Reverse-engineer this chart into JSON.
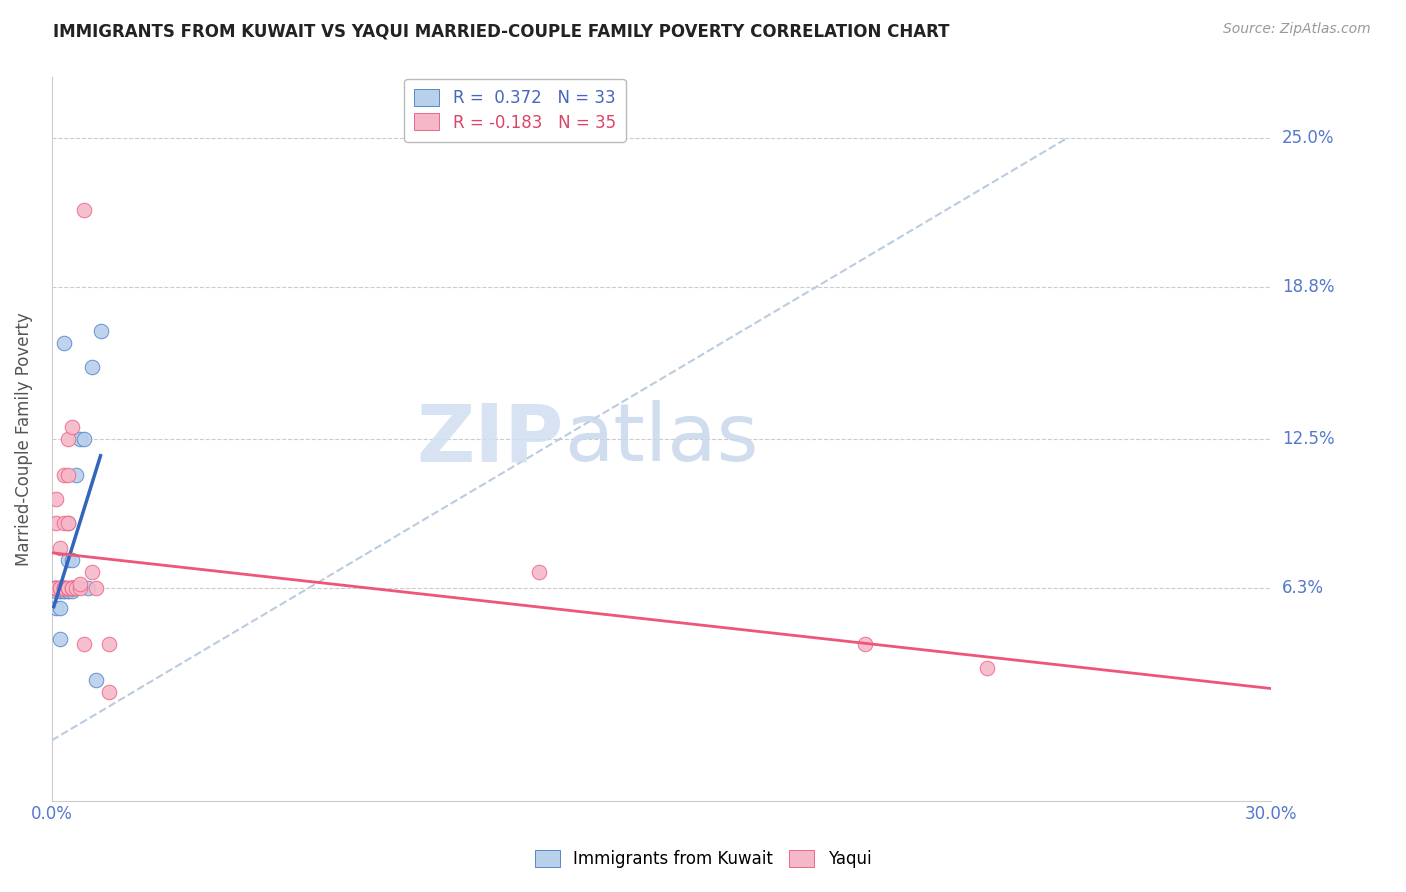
{
  "title": "IMMIGRANTS FROM KUWAIT VS YAQUI MARRIED-COUPLE FAMILY POVERTY CORRELATION CHART",
  "source": "Source: ZipAtlas.com",
  "ylabel": "Married-Couple Family Poverty",
  "ytick_labels": [
    "25.0%",
    "18.8%",
    "12.5%",
    "6.3%"
  ],
  "ytick_values": [
    0.25,
    0.188,
    0.125,
    0.063
  ],
  "xlim": [
    0.0,
    0.3
  ],
  "ylim": [
    -0.025,
    0.275
  ],
  "legend_r1": "R =  0.372   N = 33",
  "legend_r2": "R = -0.183   N = 35",
  "blue_fill": "#b8d0ea",
  "pink_fill": "#f5b8c8",
  "blue_edge": "#5588cc",
  "pink_edge": "#ee6688",
  "blue_line": "#3366bb",
  "pink_line": "#ee5577",
  "diagonal_color": "#bbcce0",
  "blue_scatter_x": [
    0.0005,
    0.001,
    0.001,
    0.001,
    0.0015,
    0.002,
    0.002,
    0.002,
    0.002,
    0.002,
    0.003,
    0.003,
    0.003,
    0.003,
    0.003,
    0.003,
    0.004,
    0.004,
    0.004,
    0.004,
    0.005,
    0.005,
    0.005,
    0.005,
    0.005,
    0.006,
    0.006,
    0.007,
    0.008,
    0.009,
    0.01,
    0.011,
    0.012
  ],
  "blue_scatter_y": [
    0.063,
    0.063,
    0.062,
    0.055,
    0.063,
    0.062,
    0.062,
    0.055,
    0.042,
    0.063,
    0.063,
    0.062,
    0.062,
    0.063,
    0.063,
    0.165,
    0.062,
    0.062,
    0.075,
    0.09,
    0.062,
    0.063,
    0.063,
    0.063,
    0.075,
    0.063,
    0.11,
    0.125,
    0.125,
    0.063,
    0.155,
    0.025,
    0.17
  ],
  "pink_scatter_x": [
    0.0005,
    0.001,
    0.001,
    0.001,
    0.001,
    0.002,
    0.002,
    0.002,
    0.003,
    0.003,
    0.003,
    0.003,
    0.003,
    0.004,
    0.004,
    0.004,
    0.004,
    0.004,
    0.004,
    0.005,
    0.005,
    0.005,
    0.005,
    0.006,
    0.007,
    0.007,
    0.008,
    0.008,
    0.01,
    0.011,
    0.014,
    0.014,
    0.12,
    0.2,
    0.23
  ],
  "pink_scatter_y": [
    0.063,
    0.063,
    0.09,
    0.1,
    0.063,
    0.063,
    0.063,
    0.08,
    0.063,
    0.063,
    0.11,
    0.09,
    0.063,
    0.063,
    0.063,
    0.063,
    0.09,
    0.11,
    0.125,
    0.063,
    0.063,
    0.063,
    0.13,
    0.063,
    0.063,
    0.065,
    0.22,
    0.04,
    0.07,
    0.063,
    0.04,
    0.02,
    0.07,
    0.04,
    0.03
  ]
}
